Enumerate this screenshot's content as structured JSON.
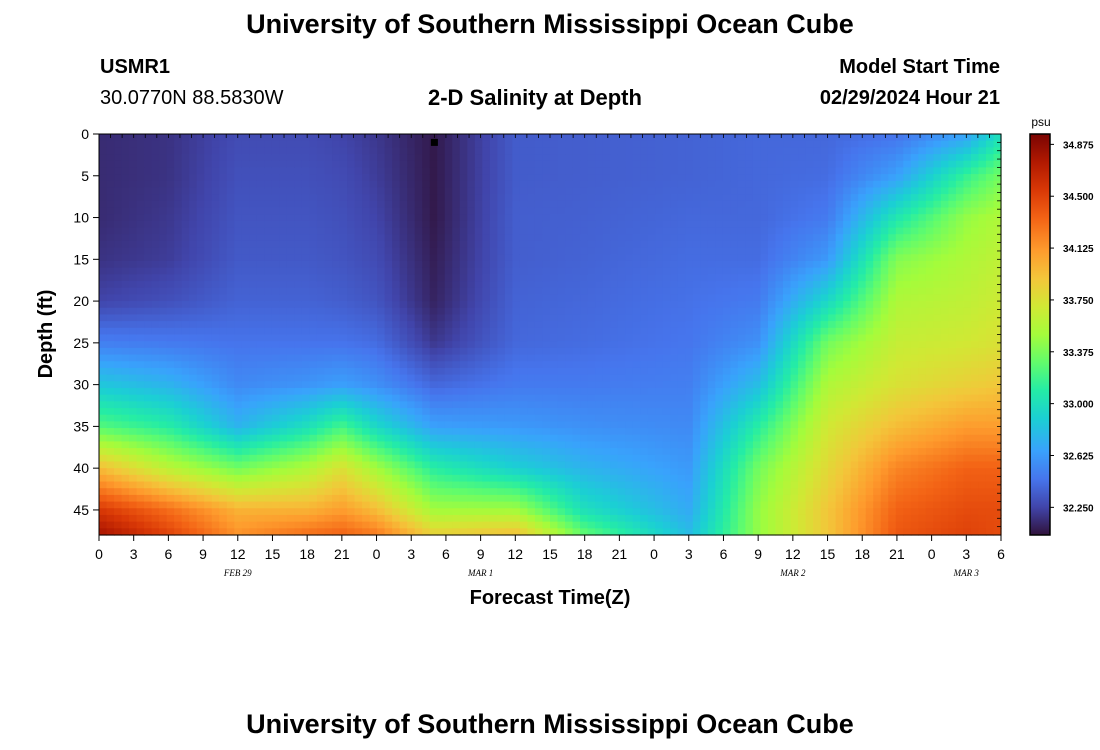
{
  "header": {
    "title": "University of Southern Mississippi Ocean Cube",
    "station_id": "USMR1",
    "coordinates": "30.0770N  88.5830W",
    "plot_title": "2-D Salinity at Depth",
    "model_start_label": "Model Start Time",
    "model_start_value": "02/29/2024 Hour 21"
  },
  "footer": {
    "title": "University of Southern Mississippi Ocean Cube"
  },
  "chart_data": {
    "type": "heatmap",
    "title": "2-D Salinity at Depth",
    "xlabel": "Forecast Time(Z)",
    "ylabel": "Depth (ft)",
    "x_tick_labels": [
      "0",
      "3",
      "6",
      "9",
      "12",
      "15",
      "18",
      "21",
      "0",
      "3",
      "6",
      "9",
      "12",
      "15",
      "18",
      "21",
      "0",
      "3",
      "6",
      "9",
      "12",
      "15",
      "18",
      "21",
      "0",
      "3",
      "6"
    ],
    "x_hours": [
      0,
      3,
      6,
      9,
      12,
      15,
      18,
      21,
      24,
      27,
      30,
      33,
      36,
      39,
      42,
      45,
      48,
      51,
      54,
      57,
      60,
      63,
      66,
      69,
      72,
      75,
      78
    ],
    "xlim_hours": [
      0,
      78
    ],
    "date_labels": [
      {
        "text": "FEB 29",
        "hour": 12
      },
      {
        "text": "MAR 1",
        "hour": 33
      },
      {
        "text": "MAR 2",
        "hour": 60
      },
      {
        "text": "MAR 3",
        "hour": 75
      }
    ],
    "y_ticks": [
      0,
      5,
      10,
      15,
      20,
      25,
      30,
      35,
      40,
      45
    ],
    "ylim": [
      0,
      48
    ],
    "y_inverted": true,
    "colorbar": {
      "unit": "psu",
      "range": [
        32.05,
        34.95
      ],
      "tick_values": [
        34.875,
        34.5,
        34.125,
        33.75,
        33.375,
        33.0,
        32.625,
        32.25
      ],
      "tick_labels": [
        "34.875",
        "34.500",
        "34.125",
        "33.750",
        "33.375",
        "33.000",
        "32.625",
        "32.250"
      ]
    },
    "marker": {
      "hour": 29,
      "depth": 1
    },
    "depth_rows": [
      0,
      5,
      10,
      15,
      20,
      25,
      30,
      35,
      40,
      45,
      48
    ],
    "grid": [
      {
        "hour": 0,
        "salinity": [
          32.15,
          32.15,
          32.15,
          32.18,
          32.25,
          32.5,
          32.85,
          33.25,
          33.95,
          34.55,
          34.8
        ]
      },
      {
        "hour": 6,
        "salinity": [
          32.18,
          32.18,
          32.2,
          32.22,
          32.3,
          32.48,
          32.75,
          33.1,
          33.6,
          34.3,
          34.5
        ]
      },
      {
        "hour": 12,
        "salinity": [
          32.28,
          32.3,
          32.32,
          32.34,
          32.38,
          32.45,
          32.55,
          32.75,
          33.35,
          34.0,
          34.15
        ]
      },
      {
        "hour": 18,
        "salinity": [
          32.28,
          32.3,
          32.32,
          32.34,
          32.38,
          32.45,
          32.6,
          33.0,
          33.55,
          34.0,
          34.3
        ]
      },
      {
        "hour": 21,
        "salinity": [
          32.25,
          32.28,
          32.3,
          32.32,
          32.36,
          32.45,
          32.65,
          33.2,
          33.75,
          34.1,
          34.35
        ]
      },
      {
        "hour": 24,
        "salinity": [
          32.2,
          32.22,
          32.25,
          32.28,
          32.32,
          32.42,
          32.58,
          32.95,
          33.5,
          33.95,
          34.25
        ]
      },
      {
        "hour": 29,
        "salinity": [
          32.08,
          32.08,
          32.08,
          32.1,
          32.12,
          32.2,
          32.4,
          32.65,
          33.1,
          33.5,
          33.85
        ]
      },
      {
        "hour": 36,
        "salinity": [
          32.35,
          32.35,
          32.36,
          32.36,
          32.38,
          32.4,
          32.48,
          32.62,
          32.9,
          33.5,
          33.95
        ]
      },
      {
        "hour": 42,
        "salinity": [
          32.36,
          32.36,
          32.37,
          32.38,
          32.4,
          32.42,
          32.48,
          32.58,
          32.75,
          33.0,
          33.3
        ]
      },
      {
        "hour": 51,
        "salinity": [
          32.38,
          32.38,
          32.4,
          32.42,
          32.44,
          32.46,
          32.5,
          32.55,
          32.62,
          32.7,
          32.8
        ]
      },
      {
        "hour": 57,
        "salinity": [
          32.4,
          32.4,
          32.4,
          32.42,
          32.48,
          32.58,
          32.8,
          33.1,
          33.35,
          33.45,
          33.45
        ]
      },
      {
        "hour": 63,
        "salinity": [
          32.4,
          32.42,
          32.48,
          32.62,
          32.95,
          33.35,
          33.55,
          33.7,
          33.8,
          33.9,
          33.9
        ]
      },
      {
        "hour": 69,
        "salinity": [
          32.45,
          32.65,
          33.05,
          33.4,
          33.55,
          33.65,
          33.75,
          33.95,
          34.2,
          34.35,
          34.4
        ]
      },
      {
        "hour": 75,
        "salinity": [
          32.65,
          33.15,
          33.45,
          33.55,
          33.62,
          33.7,
          33.85,
          34.1,
          34.35,
          34.45,
          34.5
        ]
      },
      {
        "hour": 78,
        "salinity": [
          33.0,
          33.35,
          33.55,
          33.62,
          33.68,
          33.75,
          33.9,
          34.1,
          34.35,
          34.45,
          34.45
        ]
      }
    ]
  }
}
